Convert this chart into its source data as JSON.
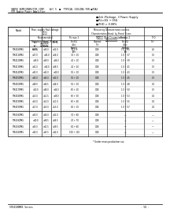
{
  "title": "STK4100MK5  Series",
  "header_line1": "SANYO SEMICONDUCTOR CORP.   A/C S  ■  TYPICAL COOLING FOR ■TSAJ",
  "header_line2": "STK Audio Power Amplifier",
  "subtitle_lines": [
    "■2ch /Package, 3 Power Supply",
    "■RL=2Ω  ─ 16Ω",
    "■THD = 0.08%"
  ],
  "table_data": [
    [
      "STK4100MK5",
      "±35.0",
      "±34.0",
      "±32.0",
      "30 + 0",
      "0.08",
      "1.0 ~ 35",
      "0.2"
    ],
    [
      "STK4110MK5",
      "±37.0",
      "±36.0",
      "±34.0",
      "30 + 10",
      "0.08",
      "1.0 ~ 37",
      "0.3"
    ],
    [
      "STK4120MK5",
      "±39.0",
      "±38.0",
      "±36.0",
      "40 + 10",
      "0.08",
      "1.0 ~ 39",
      "0.3"
    ],
    [
      "STK4130MK5",
      "±41.0",
      "±40.0",
      "±38.0",
      "40 + 20",
      "0.08",
      "1.0 ~ 41",
      "0.3"
    ],
    [
      "STK4141MK5",
      "±43.0",
      "±42.0",
      "±40.0",
      "50 + 10",
      "0.08",
      "1.0 ~ 43",
      "0.3"
    ],
    [
      "STK4150MK5",
      "±45.0",
      "±44.0",
      "±42.0",
      "50 + 20",
      "0.08",
      "1.0 ~ 45",
      "0.3"
    ],
    [
      "STK4160MK5",
      "±48.0",
      "±46.5",
      "±44.0",
      "50 + 30",
      "0.08",
      "1.0 ~ 48",
      "0.4"
    ],
    [
      "STK4170MK5",
      "±50.0",
      "±48.0",
      "±46.0",
      "60 + 20",
      "0.08",
      "1.0 ~ 50",
      "0.3"
    ],
    [
      "STK4180MK5",
      "±53.0",
      "±51.5",
      "±49.0",
      "60 + 30",
      "0.08",
      "1.0 ~ 53",
      "0.4"
    ],
    [
      "STK4190MK5",
      "±55.0",
      "±53.0",
      "±51.0",
      "60 + 40",
      "0.08",
      "1.0 ~ 55",
      "0.4"
    ],
    [
      "STK4191MK5",
      "±57.0",
      "±55.0",
      "±53.0",
      "80 + 10",
      "0.08",
      "1.0 ~ 57",
      "0.4"
    ],
    [
      "STK4392MK5",
      "±35.0",
      "±34.0",
      "±32.0",
      "30 + 60",
      "0.08",
      "―",
      "―"
    ],
    [
      "STK4392MK5",
      "±40.0",
      "±38.5",
      "±36.5",
      "20 + 70",
      "0.08",
      "―",
      "―"
    ],
    [
      "STK4392MK5",
      "±43.0",
      "±41.5",
      "±39.5",
      "80 + 60",
      "0.08",
      "―",
      "―"
    ],
    [
      "STK4392MK5",
      "±45.0",
      "±43.5",
      "±42.0",
      "100 + 100",
      "0.08",
      "―",
      "―"
    ]
  ],
  "highlighted_row": 5,
  "footer_note": "* Under mass production out",
  "page_footer_left": "STK4100MK5 Series",
  "page_footer_right": "- 58 -",
  "bg_color": "#ffffff"
}
